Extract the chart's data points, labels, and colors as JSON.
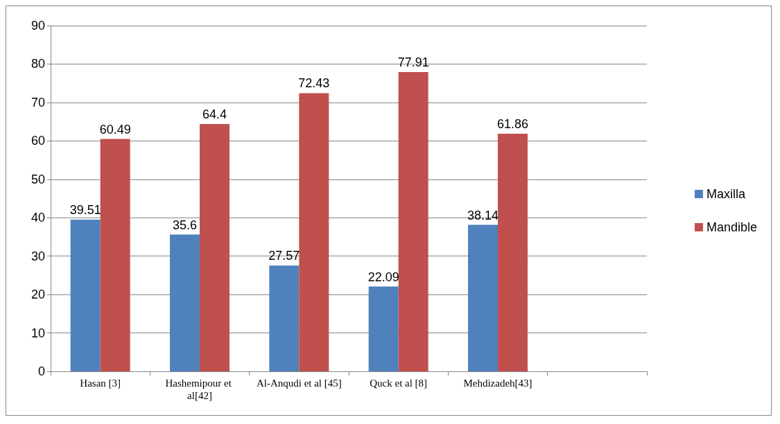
{
  "chart_data": {
    "type": "bar",
    "categories": [
      "Hasan [3]",
      "Hashemipour et al[42]",
      "Al-Anqudi et al [45]",
      "Quck et al [8]",
      "Mehdizadeh[43]",
      null
    ],
    "series": [
      {
        "name": "Maxilla",
        "color": "#4f81bd",
        "values": [
          39.51,
          35.6,
          27.57,
          22.09,
          38.14,
          null
        ]
      },
      {
        "name": "Mandible",
        "color": "#c0504d",
        "values": [
          60.49,
          64.4,
          72.43,
          77.91,
          61.86,
          null
        ]
      }
    ],
    "ylim": [
      0,
      90
    ],
    "yticks": [
      0,
      10,
      20,
      30,
      40,
      50,
      60,
      70,
      80,
      90
    ],
    "grid": true,
    "legend": "right",
    "data_labels": true
  }
}
